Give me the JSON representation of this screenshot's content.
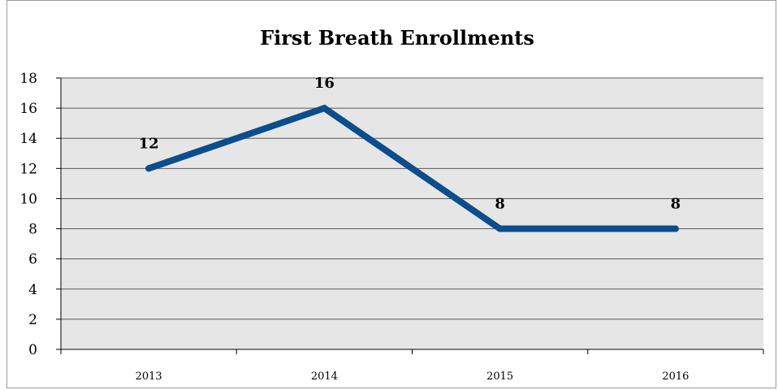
{
  "chart_data": {
    "type": "line",
    "title": "First Breath Enrollments",
    "categories": [
      "2013",
      "2014",
      "2015",
      "2016"
    ],
    "series": [
      {
        "values": [
          12,
          16,
          8,
          8
        ],
        "data_labels": [
          "12",
          "16",
          "8",
          "8"
        ]
      }
    ],
    "ylim": [
      0,
      18
    ],
    "yticks": [
      "0",
      "2",
      "4",
      "6",
      "8",
      "10",
      "12",
      "14",
      "16",
      "18"
    ],
    "grid": true,
    "legend": "none",
    "colors": {
      "line": "#0c4d8c",
      "plot_bg": "#e6e6e6",
      "grid": "#5a5a5a"
    }
  }
}
